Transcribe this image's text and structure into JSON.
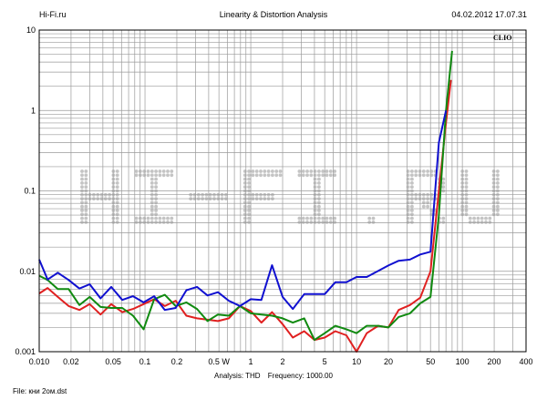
{
  "header": {
    "left": "Hi-Fi.ru",
    "center": "Linearity & Distortion Analysis",
    "right": "04.02.2012 17.07.31"
  },
  "analysis": {
    "label": "Analysis: THD",
    "frequency": "Frequency: 1000.00"
  },
  "file_label": "File: кни 2ом.dst",
  "brand_mark": "CLIO",
  "watermark_text": "HI-FI.RU",
  "colors": {
    "background": "#ffffff",
    "grid": "#9a9a9a",
    "series_red": "#e02020",
    "series_green": "#108a10",
    "series_blue": "#1010d0",
    "watermark": "#c4c4c4"
  },
  "chart_data": {
    "type": "line",
    "x_scale": "log",
    "y_scale": "log",
    "xlim": [
      0.01,
      400
    ],
    "ylim": [
      0.001,
      10
    ],
    "grid": true,
    "x_tick_labels": [
      {
        "value": 0.01,
        "label": "0.010"
      },
      {
        "value": 0.02,
        "label": "0.02"
      },
      {
        "value": 0.05,
        "label": "0.05"
      },
      {
        "value": 0.1,
        "label": "0.1"
      },
      {
        "value": 0.2,
        "label": "0.2"
      },
      {
        "value": 0.5,
        "label": "0.5 W"
      },
      {
        "value": 1,
        "label": "1"
      },
      {
        "value": 2,
        "label": "2"
      },
      {
        "value": 5,
        "label": "5"
      },
      {
        "value": 10,
        "label": "10"
      },
      {
        "value": 20,
        "label": "20"
      },
      {
        "value": 50,
        "label": "50"
      },
      {
        "value": 100,
        "label": "100"
      },
      {
        "value": 200,
        "label": "200"
      },
      {
        "value": 400,
        "label": "400"
      }
    ],
    "y_tick_labels": [
      {
        "value": 10,
        "label": "10"
      },
      {
        "value": 1,
        "label": "1"
      },
      {
        "value": 0.1,
        "label": "0.1"
      },
      {
        "value": 0.01,
        "label": "0.01"
      },
      {
        "value": 0.001,
        "label": "0.001"
      }
    ],
    "series": [
      {
        "color": "#e02020",
        "points": [
          [
            0.01,
            0.0053
          ],
          [
            0.012,
            0.0062
          ],
          [
            0.015,
            0.0048
          ],
          [
            0.019,
            0.0037
          ],
          [
            0.024,
            0.0033
          ],
          [
            0.03,
            0.0039
          ],
          [
            0.038,
            0.0029
          ],
          [
            0.048,
            0.0039
          ],
          [
            0.061,
            0.0031
          ],
          [
            0.077,
            0.0034
          ],
          [
            0.097,
            0.0039
          ],
          [
            0.122,
            0.0045
          ],
          [
            0.154,
            0.0037
          ],
          [
            0.195,
            0.0043
          ],
          [
            0.246,
            0.0028
          ],
          [
            0.31,
            0.0026
          ],
          [
            0.39,
            0.0025
          ],
          [
            0.49,
            0.0024
          ],
          [
            0.62,
            0.0026
          ],
          [
            0.79,
            0.0037
          ],
          [
            1.0,
            0.0032
          ],
          [
            1.26,
            0.0023
          ],
          [
            1.59,
            0.0031
          ],
          [
            2.0,
            0.0022
          ],
          [
            2.5,
            0.0015
          ],
          [
            3.2,
            0.0018
          ],
          [
            4.0,
            0.0014
          ],
          [
            5.0,
            0.0015
          ],
          [
            6.3,
            0.0018
          ],
          [
            8.0,
            0.0016
          ],
          [
            10.0,
            0.001
          ],
          [
            12.5,
            0.0017
          ],
          [
            16.0,
            0.0021
          ],
          [
            20.0,
            0.002
          ],
          [
            25.0,
            0.0033
          ],
          [
            32.0,
            0.0038
          ],
          [
            40.0,
            0.0047
          ],
          [
            50.0,
            0.01
          ],
          [
            60.0,
            0.1
          ],
          [
            70.0,
            0.7
          ],
          [
            78.0,
            2.4
          ]
        ]
      },
      {
        "color": "#108a10",
        "points": [
          [
            0.01,
            0.0088
          ],
          [
            0.012,
            0.0078
          ],
          [
            0.015,
            0.006
          ],
          [
            0.019,
            0.006
          ],
          [
            0.024,
            0.0038
          ],
          [
            0.03,
            0.0048
          ],
          [
            0.038,
            0.0036
          ],
          [
            0.048,
            0.0035
          ],
          [
            0.061,
            0.0035
          ],
          [
            0.077,
            0.0028
          ],
          [
            0.097,
            0.0019
          ],
          [
            0.122,
            0.0045
          ],
          [
            0.154,
            0.0051
          ],
          [
            0.195,
            0.0037
          ],
          [
            0.246,
            0.0041
          ],
          [
            0.31,
            0.0034
          ],
          [
            0.39,
            0.0024
          ],
          [
            0.49,
            0.0029
          ],
          [
            0.62,
            0.0028
          ],
          [
            0.79,
            0.0037
          ],
          [
            1.0,
            0.003
          ],
          [
            1.26,
            0.0029
          ],
          [
            1.59,
            0.0028
          ],
          [
            2.0,
            0.0026
          ],
          [
            2.5,
            0.0023
          ],
          [
            3.2,
            0.0026
          ],
          [
            4.0,
            0.0014
          ],
          [
            5.0,
            0.0017
          ],
          [
            6.3,
            0.0021
          ],
          [
            8.0,
            0.0019
          ],
          [
            10.0,
            0.0017
          ],
          [
            12.5,
            0.0021
          ],
          [
            16.0,
            0.0021
          ],
          [
            20.0,
            0.002
          ],
          [
            25.0,
            0.0027
          ],
          [
            32.0,
            0.003
          ],
          [
            40.0,
            0.004
          ],
          [
            50.0,
            0.0048
          ],
          [
            60.0,
            0.05
          ],
          [
            70.0,
            1.0
          ],
          [
            80.0,
            5.5
          ]
        ]
      },
      {
        "color": "#1010d0",
        "points": [
          [
            0.01,
            0.014
          ],
          [
            0.012,
            0.0079
          ],
          [
            0.015,
            0.0096
          ],
          [
            0.019,
            0.0078
          ],
          [
            0.024,
            0.0061
          ],
          [
            0.03,
            0.0069
          ],
          [
            0.038,
            0.0046
          ],
          [
            0.048,
            0.0064
          ],
          [
            0.061,
            0.0044
          ],
          [
            0.077,
            0.0049
          ],
          [
            0.097,
            0.0041
          ],
          [
            0.122,
            0.0049
          ],
          [
            0.154,
            0.0033
          ],
          [
            0.195,
            0.0035
          ],
          [
            0.246,
            0.0058
          ],
          [
            0.31,
            0.0064
          ],
          [
            0.39,
            0.005
          ],
          [
            0.49,
            0.0055
          ],
          [
            0.62,
            0.0043
          ],
          [
            0.79,
            0.0037
          ],
          [
            1.0,
            0.0045
          ],
          [
            1.26,
            0.0044
          ],
          [
            1.59,
            0.0119
          ],
          [
            2.0,
            0.0048
          ],
          [
            2.5,
            0.0034
          ],
          [
            3.2,
            0.0052
          ],
          [
            4.0,
            0.0052
          ],
          [
            5.0,
            0.0052
          ],
          [
            6.3,
            0.0073
          ],
          [
            8.0,
            0.0073
          ],
          [
            10.0,
            0.0085
          ],
          [
            12.5,
            0.0085
          ],
          [
            16.0,
            0.0101
          ],
          [
            20.0,
            0.0118
          ],
          [
            25.0,
            0.0135
          ],
          [
            32.0,
            0.014
          ],
          [
            40.0,
            0.0162
          ],
          [
            50.0,
            0.0175
          ],
          [
            60.0,
            0.4
          ],
          [
            70.0,
            1.0
          ]
        ]
      }
    ]
  }
}
